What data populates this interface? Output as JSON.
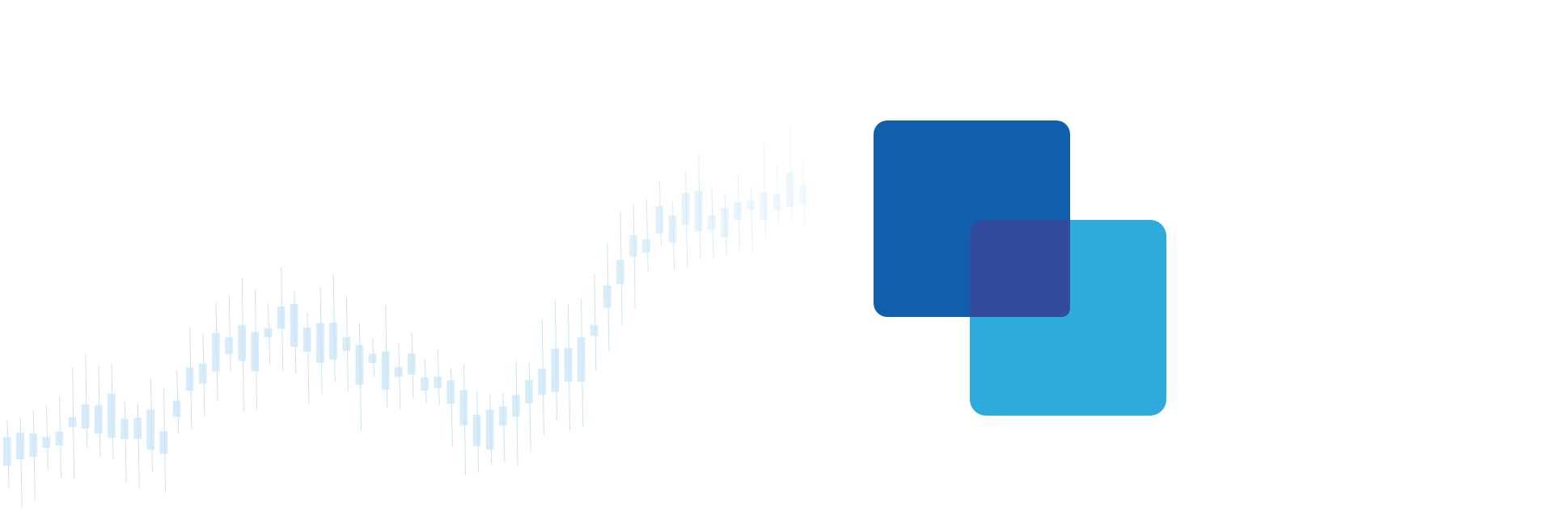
{
  "colors": {
    "background": "#ffffff",
    "candle_body": "#c9e6f7",
    "candle_wick": "#b7dcf2",
    "logo_dark_square": "#115fac",
    "logo_light_square": "#2eabdd",
    "logo_overlap": "#324b9d"
  },
  "background_pattern": {
    "kind": "faded candlestick chart",
    "candle_count": 62
  },
  "logo": {
    "icon": "overlapping-squares-logo-icon"
  }
}
